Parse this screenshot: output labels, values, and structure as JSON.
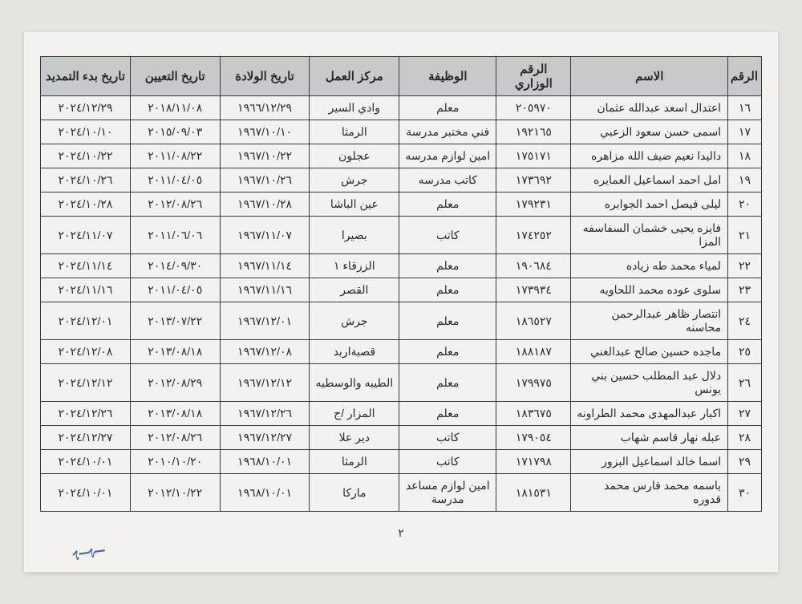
{
  "headers": {
    "num": "الرقم",
    "name": "الاسم",
    "minId": "الرقم الوزاري",
    "job": "الوظيفة",
    "place": "مركز العمل",
    "dob": "تاريخ الولادة",
    "hire": "تاريخ التعيين",
    "ext": "تاريخ بدء التمديد"
  },
  "rows": [
    {
      "n": "١٦",
      "name": "اعتدال اسعد عبدالله عثمان",
      "id": "٢٠٥٩٧٠",
      "job": "معلم",
      "place": "وادي السير",
      "dob": "١٩٦٦/١٢/٢٩",
      "hire": "٢٠١٨/١١/٠٨",
      "ext": "٢٠٢٤/١٢/٢٩"
    },
    {
      "n": "١٧",
      "name": "اسمى حسن سعود الزعبي",
      "id": "١٩٢١٦٥",
      "job": "فني مختبر مدرسة",
      "place": "الرمثا",
      "dob": "١٩٦٧/١٠/١٠",
      "hire": "٢٠١٥/٠٩/٠٣",
      "ext": "٢٠٢٤/١٠/١٠"
    },
    {
      "n": "١٨",
      "name": "داليدا نعيم ضيف الله مزاهره",
      "id": "١٧٥١٧١",
      "job": "امين لوازم مدرسه",
      "place": "عجلون",
      "dob": "١٩٦٧/١٠/٢٢",
      "hire": "٢٠١١/٠٨/٢٢",
      "ext": "٢٠٢٤/١٠/٢٢"
    },
    {
      "n": "١٩",
      "name": "امل احمد اسماعيل العمايره",
      "id": "١٧٣٦٩٢",
      "job": "كاتب مدرسه",
      "place": "جرش",
      "dob": "١٩٦٧/١٠/٢٦",
      "hire": "٢٠١١/٠٤/٠٥",
      "ext": "٢٠٢٤/١٠/٢٦"
    },
    {
      "n": "٢٠",
      "name": "ليلى فيصل احمد الجوابره",
      "id": "١٧٩٢٣١",
      "job": "معلم",
      "place": "عين الباشا",
      "dob": "١٩٦٧/١٠/٢٨",
      "hire": "٢٠١٢/٠٨/٢٦",
      "ext": "٢٠٢٤/١٠/٢٨"
    },
    {
      "n": "٢١",
      "name": "فايزه يحيى خشمان السفاسفه المزا",
      "id": "١٧٤٢٥٢",
      "job": "كاتب",
      "place": "بصيرا",
      "dob": "١٩٦٧/١١/٠٧",
      "hire": "٢٠١١/٠٦/٠٦",
      "ext": "٢٠٢٤/١١/٠٧"
    },
    {
      "n": "٢٢",
      "name": "لمياء محمد طه زياده",
      "id": "١٩٠٦٨٤",
      "job": "معلم",
      "place": "الزرقاء ١",
      "dob": "١٩٦٧/١١/١٤",
      "hire": "٢٠١٤/٠٩/٣٠",
      "ext": "٢٠٢٤/١١/١٤"
    },
    {
      "n": "٢٣",
      "name": "سلوى عوده محمد اللحاويه",
      "id": "١٧٣٩٣٤",
      "job": "معلم",
      "place": "القصر",
      "dob": "١٩٦٧/١١/١٦",
      "hire": "٢٠١١/٠٤/٠٥",
      "ext": "٢٠٢٤/١١/١٦"
    },
    {
      "n": "٢٤",
      "name": "انتصار ظاهر عبدالرحمن محاسنه",
      "id": "١٨٦٥٢٧",
      "job": "معلم",
      "place": "جرش",
      "dob": "١٩٦٧/١٢/٠١",
      "hire": "٢٠١٣/٠٧/٢٢",
      "ext": "٢٠٢٤/١٢/٠١"
    },
    {
      "n": "٢٥",
      "name": "ماجده حسين صالح عبدالغني",
      "id": "١٨٨١٨٧",
      "job": "معلم",
      "place": "قصبةاربد",
      "dob": "١٩٦٧/١٢/٠٨",
      "hire": "٢٠١٣/٠٨/١٨",
      "ext": "٢٠٢٤/١٢/٠٨"
    },
    {
      "n": "٢٦",
      "name": "دلال عبد المطلب حسين بني يونس",
      "id": "١٧٩٩٧٥",
      "job": "معلم",
      "place": "الطيبه والوسطيه",
      "dob": "١٩٦٧/١٢/١٢",
      "hire": "٢٠١٢/٠٨/٢٩",
      "ext": "٢٠٢٤/١٢/١٢"
    },
    {
      "n": "٢٧",
      "name": "اكبار عبدالمهدى محمد الطراونه",
      "id": "١٨٣٦٧٥",
      "job": "معلم",
      "place": "المزار /ج",
      "dob": "١٩٦٧/١٢/٢٦",
      "hire": "٢٠١٣/٠٨/١٨",
      "ext": "٢٠٢٤/١٢/٢٦"
    },
    {
      "n": "٢٨",
      "name": "عبله نهار قاسم شهاب",
      "id": "١٧٩٠٥٤",
      "job": "كاتب",
      "place": "دير علا",
      "dob": "١٩٦٧/١٢/٢٧",
      "hire": "٢٠١٢/٠٨/٢٦",
      "ext": "٢٠٢٤/١٢/٢٧"
    },
    {
      "n": "٢٩",
      "name": "اسما خالد اسماعيل البزور",
      "id": "١٧١٧٩٨",
      "job": "كاتب",
      "place": "الرمثا",
      "dob": "١٩٦٨/١٠/٠١",
      "hire": "٢٠١٠/١٠/٢٠",
      "ext": "٢٠٢٤/١٠/٠١"
    },
    {
      "n": "٣٠",
      "name": "باسمه محمد فارس محمد قدوره",
      "id": "١٨١٥٣١",
      "job": "امين لوازم مساعد مدرسة",
      "place": "ماركا",
      "dob": "١٩٦٨/١٠/٠١",
      "hire": "٢٠١٢/١٠/٢٢",
      "ext": "٢٠٢٤/١٠/٠١"
    }
  ],
  "pageNumber": "٢",
  "styling": {
    "header_bg": "#c8c9cb",
    "border_color": "#3a3a3a",
    "page_bg": "#f4f2ee",
    "body_bg": "#e8e5e0",
    "text_color": "#2a2a2a",
    "font_size_cell": 14,
    "font_size_header": 15,
    "signature_color": "#2a4a9a"
  }
}
